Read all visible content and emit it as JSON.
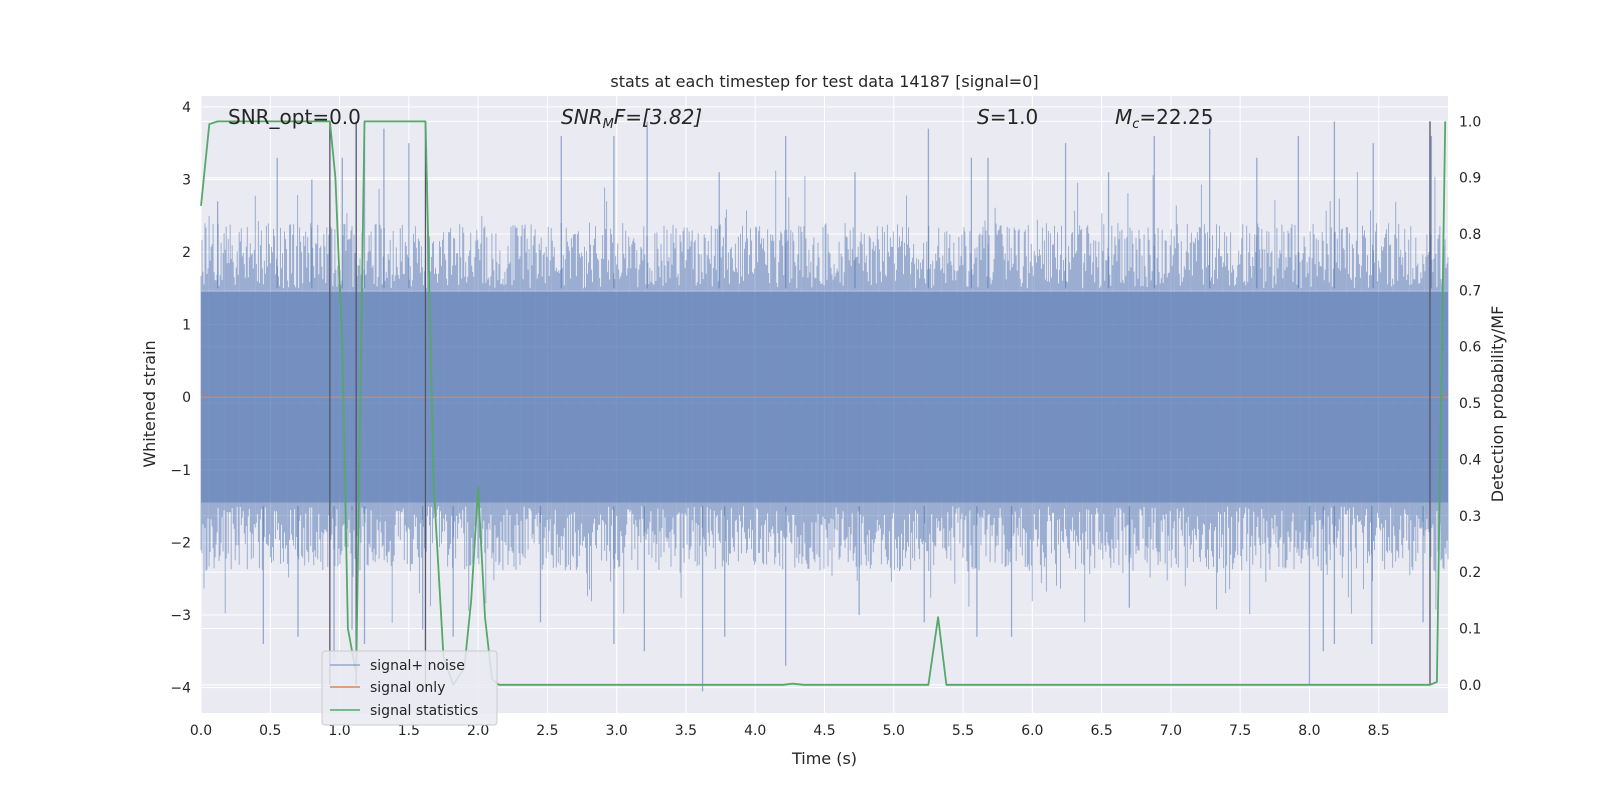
{
  "chart_data": {
    "type": "line",
    "title": "stats at each timestep for test data 14187 [signal=0]",
    "xlabel": "Time (s)",
    "ylabel": "Whitened strain",
    "y2label": "Detection probability/MF",
    "xlim": [
      0,
      9.0
    ],
    "ylim": [
      -4.35,
      4.15
    ],
    "y2lim": [
      -0.05,
      1.045
    ],
    "x_ticks": [
      0.0,
      0.5,
      1.0,
      1.5,
      2.0,
      2.5,
      3.0,
      3.5,
      4.0,
      4.5,
      5.0,
      5.5,
      6.0,
      6.5,
      7.0,
      7.5,
      8.0,
      8.5
    ],
    "x_tick_labels": [
      "0.0",
      "0.5",
      "1.0",
      "1.5",
      "2.0",
      "2.5",
      "3.0",
      "3.5",
      "4.0",
      "4.5",
      "5.0",
      "5.5",
      "6.0",
      "6.5",
      "7.0",
      "7.5",
      "8.0",
      "8.5"
    ],
    "y_ticks": [
      4,
      3,
      2,
      1,
      0,
      -1,
      -2,
      -3,
      -4
    ],
    "y_tick_labels": [
      "4",
      "3",
      "2",
      "1",
      "0",
      "−1",
      "−2",
      "−3",
      "−4"
    ],
    "y2_ticks": [
      1.0,
      0.9,
      0.8,
      0.7,
      0.6,
      0.5,
      0.4,
      0.3,
      0.2,
      0.1,
      0.0
    ],
    "y2_tick_labels": [
      "1.0",
      "0.9",
      "0.8",
      "0.7",
      "0.6",
      "0.5",
      "0.4",
      "0.3",
      "0.2",
      "0.1",
      "0.0"
    ],
    "grid": true,
    "legend_position": "lower-left",
    "annotations": [
      {
        "text": "SNR_opt=0.0",
        "x": 0.2
      },
      {
        "text": "SNR",
        "sub": "M",
        "suffix": "F=[3.82]",
        "italic": true,
        "x": 2.6
      },
      {
        "text": "S",
        "suffix": "=1.0",
        "italic_prefix": true,
        "x": 5.6
      },
      {
        "text": "M",
        "sub": "c",
        "suffix": "=22.25",
        "italic_prefix": true,
        "x": 6.6
      }
    ],
    "series": [
      {
        "name": "signal+ noise",
        "color": "#4c72b0",
        "axis": "left",
        "envelope": "noise",
        "spikes_up": [
          [
            0.12,
            2.7
          ],
          [
            0.55,
            3.3
          ],
          [
            0.8,
            3.0
          ],
          [
            1.02,
            3.3
          ],
          [
            1.18,
            3.6
          ],
          [
            1.32,
            3.7
          ],
          [
            1.5,
            3.5
          ],
          [
            2.6,
            3.6
          ],
          [
            2.98,
            3.6
          ],
          [
            3.22,
            3.8
          ],
          [
            3.74,
            3.1
          ],
          [
            4.22,
            3.6
          ],
          [
            4.72,
            3.1
          ],
          [
            5.25,
            3.7
          ],
          [
            5.56,
            3.3
          ],
          [
            5.68,
            3.3
          ],
          [
            6.24,
            3.5
          ],
          [
            6.55,
            3.1
          ],
          [
            6.88,
            3.6
          ],
          [
            7.28,
            3.7
          ],
          [
            7.62,
            3.3
          ],
          [
            7.92,
            3.6
          ],
          [
            8.18,
            3.8
          ],
          [
            8.46,
            3.5
          ],
          [
            8.88,
            3.6
          ]
        ],
        "spikes_down": [
          [
            0.45,
            -3.4
          ],
          [
            0.7,
            -3.3
          ],
          [
            0.96,
            -3.6
          ],
          [
            1.09,
            -3.2
          ],
          [
            1.18,
            -3.4
          ],
          [
            1.6,
            -3.2
          ],
          [
            1.82,
            -3.3
          ],
          [
            2.45,
            -3.1
          ],
          [
            2.98,
            -3.4
          ],
          [
            3.2,
            -3.5
          ],
          [
            3.62,
            -4.05
          ],
          [
            3.78,
            -3.3
          ],
          [
            4.22,
            -3.7
          ],
          [
            4.75,
            -3.0
          ],
          [
            5.22,
            -3.1
          ],
          [
            5.6,
            -3.3
          ],
          [
            5.85,
            -3.3
          ],
          [
            6.7,
            -2.9
          ],
          [
            8.0,
            -3.95
          ],
          [
            8.1,
            -3.5
          ],
          [
            8.18,
            -3.4
          ],
          [
            8.45,
            -3.4
          ],
          [
            8.82,
            -3.1
          ]
        ]
      },
      {
        "name": "signal only",
        "color": "#dd8452",
        "axis": "left",
        "x": [
          0,
          9.0
        ],
        "y": [
          0,
          0
        ]
      },
      {
        "name": "signal statistics",
        "color": "#55a868",
        "axis": "right",
        "x": [
          0.0,
          0.06,
          0.12,
          0.93,
          0.97,
          1.02,
          1.06,
          1.12,
          1.18,
          1.62,
          1.68,
          1.75,
          1.82,
          1.9,
          1.95,
          2.0,
          2.05,
          2.1,
          2.15,
          4.2,
          4.27,
          4.35,
          5.25,
          5.32,
          5.38,
          8.87,
          8.92,
          8.98
        ],
        "y": [
          0.85,
          0.995,
          1.0,
          1.0,
          0.9,
          0.6,
          0.1,
          0.02,
          1.0,
          1.0,
          0.35,
          0.05,
          0.0,
          0.03,
          0.15,
          0.35,
          0.12,
          0.01,
          0.0,
          0.0,
          0.002,
          0.0,
          0.0,
          0.12,
          0.0,
          0.0,
          0.005,
          1.0
        ]
      }
    ],
    "vlines": [
      {
        "x": 0.93,
        "y_from": 0.0,
        "y_to": 1.0
      },
      {
        "x": 1.12,
        "y_from": 0.0,
        "y_to": 1.0
      },
      {
        "x": 1.62,
        "y_from": 0.0,
        "y_to": 1.0
      },
      {
        "x": 8.87,
        "y_from": 0.0,
        "y_to": 1.0
      }
    ]
  }
}
